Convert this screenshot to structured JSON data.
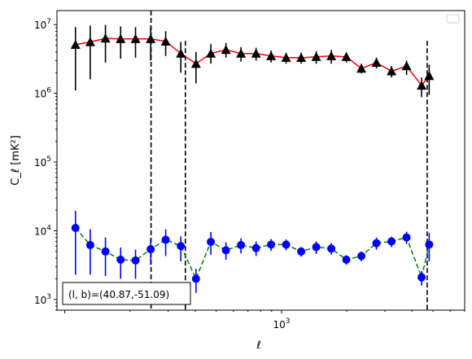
{
  "chart_data": {
    "type": "scatter",
    "xlabel": "ℓ",
    "ylabel": "C_ℓ [mK²]",
    "xscale": "log",
    "yscale": "log",
    "xlim": [
      92,
      7000
    ],
    "ylim": [
      700,
      16000000
    ],
    "x_ticks": [
      {
        "value": 1000,
        "base": "10",
        "exp": "3"
      }
    ],
    "y_ticks": [
      {
        "value": 1000,
        "base": "10",
        "exp": "3"
      },
      {
        "value": 10000,
        "base": "10",
        "exp": "4"
      },
      {
        "value": 100000,
        "base": "10",
        "exp": "5"
      },
      {
        "value": 1000000,
        "base": "10",
        "exp": "6"
      },
      {
        "value": 10000000,
        "base": "10",
        "exp": "7"
      }
    ],
    "vertical_lines": [
      {
        "x": 250,
        "ymin": 700,
        "ymax": 16000000
      },
      {
        "x": 360,
        "ymin": 700,
        "ymax": 5800000
      },
      {
        "x": 4700,
        "ymin": 700,
        "ymax": 5800000
      }
    ],
    "legend": "top-right",
    "annotation": "(l, b)=(40.87,-51.09)",
    "series": [
      {
        "marker": "triangle",
        "marker_color": "#000000",
        "line_color": "#ff0000",
        "line_style": "solid",
        "points": [
          {
            "x": 112,
            "y": 5100000,
            "ylo": 1100000,
            "yhi": 9200000
          },
          {
            "x": 131,
            "y": 5600000,
            "ylo": 1600000,
            "yhi": 9700000
          },
          {
            "x": 154,
            "y": 6300000,
            "ylo": 2800000,
            "yhi": 9900000
          },
          {
            "x": 181,
            "y": 6200000,
            "ylo": 3200000,
            "yhi": 9400000
          },
          {
            "x": 212,
            "y": 6200000,
            "ylo": 3300000,
            "yhi": 9200000
          },
          {
            "x": 249,
            "y": 6200000,
            "ylo": 3000000,
            "yhi": 9300000
          },
          {
            "x": 292,
            "y": 5700000,
            "ylo": 3500000,
            "yhi": 8000000
          },
          {
            "x": 343,
            "y": 3800000,
            "ylo": 2000000,
            "yhi": 5600000
          },
          {
            "x": 403,
            "y": 2700000,
            "ylo": 1400000,
            "yhi": 4000000
          },
          {
            "x": 472,
            "y": 3800000,
            "ylo": 2700000,
            "yhi": 5200000
          },
          {
            "x": 554,
            "y": 4300000,
            "ylo": 3300000,
            "yhi": 5400000
          },
          {
            "x": 650,
            "y": 3800000,
            "ylo": 2900000,
            "yhi": 4700000
          },
          {
            "x": 763,
            "y": 3800000,
            "ylo": 3000000,
            "yhi": 4600000
          },
          {
            "x": 895,
            "y": 3500000,
            "ylo": 2800000,
            "yhi": 4200000
          },
          {
            "x": 1050,
            "y": 3300000,
            "ylo": 2700000,
            "yhi": 3900000
          },
          {
            "x": 1232,
            "y": 3300000,
            "ylo": 2700000,
            "yhi": 3900000
          },
          {
            "x": 1446,
            "y": 3400000,
            "ylo": 2700000,
            "yhi": 4100000
          },
          {
            "x": 1697,
            "y": 3500000,
            "ylo": 2700000,
            "yhi": 4300000
          },
          {
            "x": 1991,
            "y": 3400000,
            "ylo": 2800000,
            "yhi": 3900000
          },
          {
            "x": 2336,
            "y": 2300000,
            "ylo": 1950000,
            "yhi": 2700000
          },
          {
            "x": 2741,
            "y": 2800000,
            "ylo": 2300000,
            "yhi": 3300000
          },
          {
            "x": 3217,
            "y": 2100000,
            "ylo": 1700000,
            "yhi": 2500000
          },
          {
            "x": 3775,
            "y": 2500000,
            "ylo": 1850000,
            "yhi": 3000000
          },
          {
            "x": 4429,
            "y": 1300000,
            "ylo": 880000,
            "yhi": 1700000
          },
          {
            "x": 4800,
            "y": 1800000,
            "ylo": 950000,
            "yhi": 2600000
          }
        ]
      },
      {
        "marker": "circle",
        "marker_color": "#0000ff",
        "line_color": "#008000",
        "line_style": "dashed",
        "points": [
          {
            "x": 112,
            "y": 11000,
            "ylo": 2300,
            "yhi": 19500
          },
          {
            "x": 131,
            "y": 6200,
            "ylo": 2300,
            "yhi": 10500
          },
          {
            "x": 154,
            "y": 5000,
            "ylo": 2200,
            "yhi": 8000
          },
          {
            "x": 181,
            "y": 3800,
            "ylo": 2000,
            "yhi": 5700
          },
          {
            "x": 212,
            "y": 3700,
            "ylo": 2000,
            "yhi": 5300
          },
          {
            "x": 249,
            "y": 5400,
            "ylo": 3200,
            "yhi": 7700
          },
          {
            "x": 292,
            "y": 7400,
            "ylo": 4300,
            "yhi": 10500
          },
          {
            "x": 343,
            "y": 6000,
            "ylo": 3600,
            "yhi": 8300
          },
          {
            "x": 403,
            "y": 2000,
            "ylo": 1250,
            "yhi": 2800
          },
          {
            "x": 472,
            "y": 6900,
            "ylo": 4500,
            "yhi": 9600
          },
          {
            "x": 554,
            "y": 5200,
            "ylo": 3800,
            "yhi": 6800
          },
          {
            "x": 650,
            "y": 6200,
            "ylo": 4700,
            "yhi": 7800
          },
          {
            "x": 763,
            "y": 5600,
            "ylo": 4300,
            "yhi": 7000
          },
          {
            "x": 895,
            "y": 6300,
            "ylo": 5100,
            "yhi": 7600
          },
          {
            "x": 1050,
            "y": 6300,
            "ylo": 5200,
            "yhi": 7500
          },
          {
            "x": 1232,
            "y": 5000,
            "ylo": 4200,
            "yhi": 5800
          },
          {
            "x": 1446,
            "y": 5800,
            "ylo": 4600,
            "yhi": 7000
          },
          {
            "x": 1697,
            "y": 5500,
            "ylo": 4500,
            "yhi": 6600
          },
          {
            "x": 1991,
            "y": 3800,
            "ylo": 3200,
            "yhi": 4400
          },
          {
            "x": 2336,
            "y": 4300,
            "ylo": 3600,
            "yhi": 5000
          },
          {
            "x": 2741,
            "y": 6600,
            "ylo": 5300,
            "yhi": 8000
          },
          {
            "x": 3217,
            "y": 7000,
            "ylo": 5800,
            "yhi": 8200
          },
          {
            "x": 3775,
            "y": 8000,
            "ylo": 6400,
            "yhi": 9700
          },
          {
            "x": 4429,
            "y": 2100,
            "ylo": 1600,
            "yhi": 2600
          },
          {
            "x": 4800,
            "y": 6300,
            "ylo": 3600,
            "yhi": 9300
          }
        ]
      }
    ]
  }
}
